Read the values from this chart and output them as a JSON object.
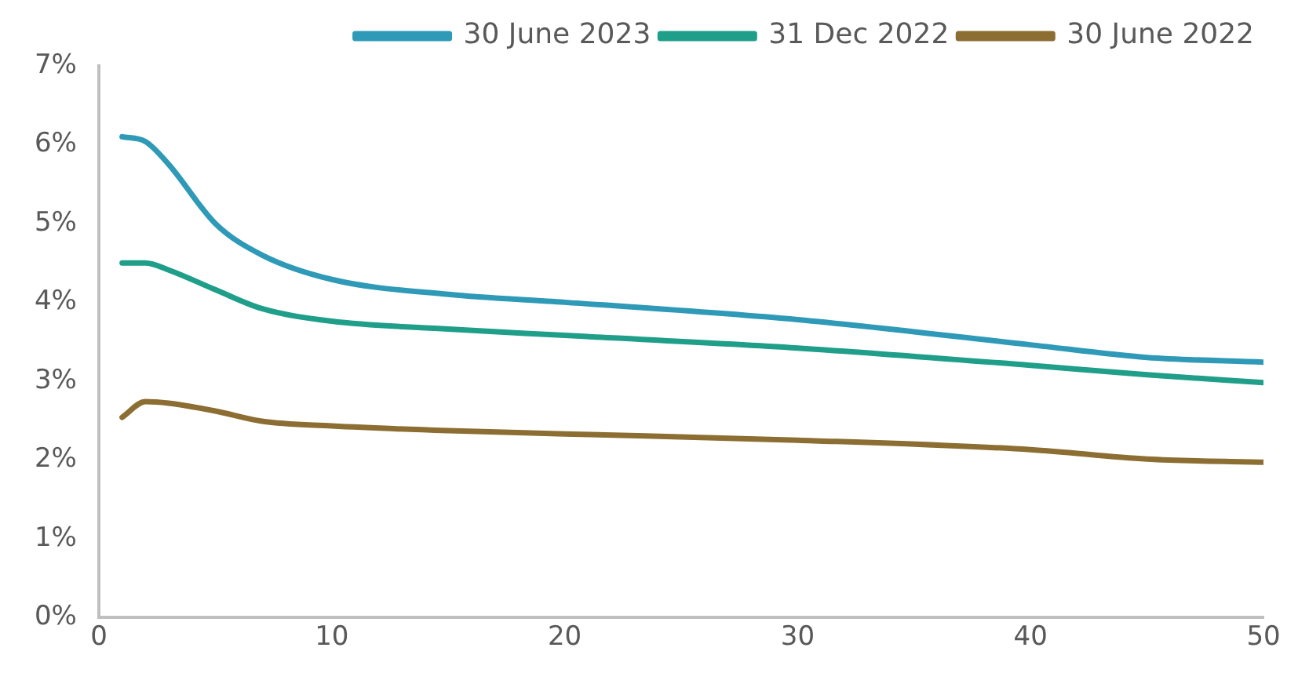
{
  "chart_data": {
    "type": "line",
    "xlim": [
      0,
      50
    ],
    "xticks": [
      0,
      10,
      20,
      30,
      40,
      50
    ],
    "ylim": [
      0,
      7
    ],
    "yticks": [
      {
        "value": 0,
        "label": "0%"
      },
      {
        "value": 1,
        "label": "1%"
      },
      {
        "value": 2,
        "label": "2%"
      },
      {
        "value": 3,
        "label": "3%"
      },
      {
        "value": 4,
        "label": "4%"
      },
      {
        "value": 5,
        "label": "5%"
      },
      {
        "value": 6,
        "label": "6%"
      },
      {
        "value": 7,
        "label": "7%"
      }
    ],
    "grid": false,
    "legend": "top right",
    "marker": "none",
    "line_style": "solid",
    "series": [
      {
        "name": "30 June 2023",
        "color": "#2e9ab8",
        "x": [
          1,
          2,
          3,
          5,
          7,
          10,
          15,
          20,
          30,
          40,
          45,
          50
        ],
        "values": [
          6.1,
          6.04,
          5.75,
          5.0,
          4.6,
          4.29,
          4.1,
          4.0,
          3.78,
          3.46,
          3.3,
          3.24
        ]
      },
      {
        "name": "31 Dec 2022",
        "color": "#1f9e89",
        "x": [
          1,
          2,
          3,
          5,
          7,
          10,
          15,
          20,
          30,
          40,
          45,
          50
        ],
        "values": [
          4.5,
          4.5,
          4.41,
          4.16,
          3.92,
          3.76,
          3.66,
          3.58,
          3.42,
          3.2,
          3.08,
          2.98
        ]
      },
      {
        "name": "30 June 2022",
        "color": "#8c6d32",
        "x": [
          1,
          2,
          3,
          5,
          7,
          10,
          15,
          20,
          30,
          40,
          45,
          50
        ],
        "values": [
          2.54,
          2.74,
          2.72,
          2.62,
          2.49,
          2.43,
          2.37,
          2.33,
          2.25,
          2.13,
          2.01,
          1.97
        ]
      }
    ]
  }
}
